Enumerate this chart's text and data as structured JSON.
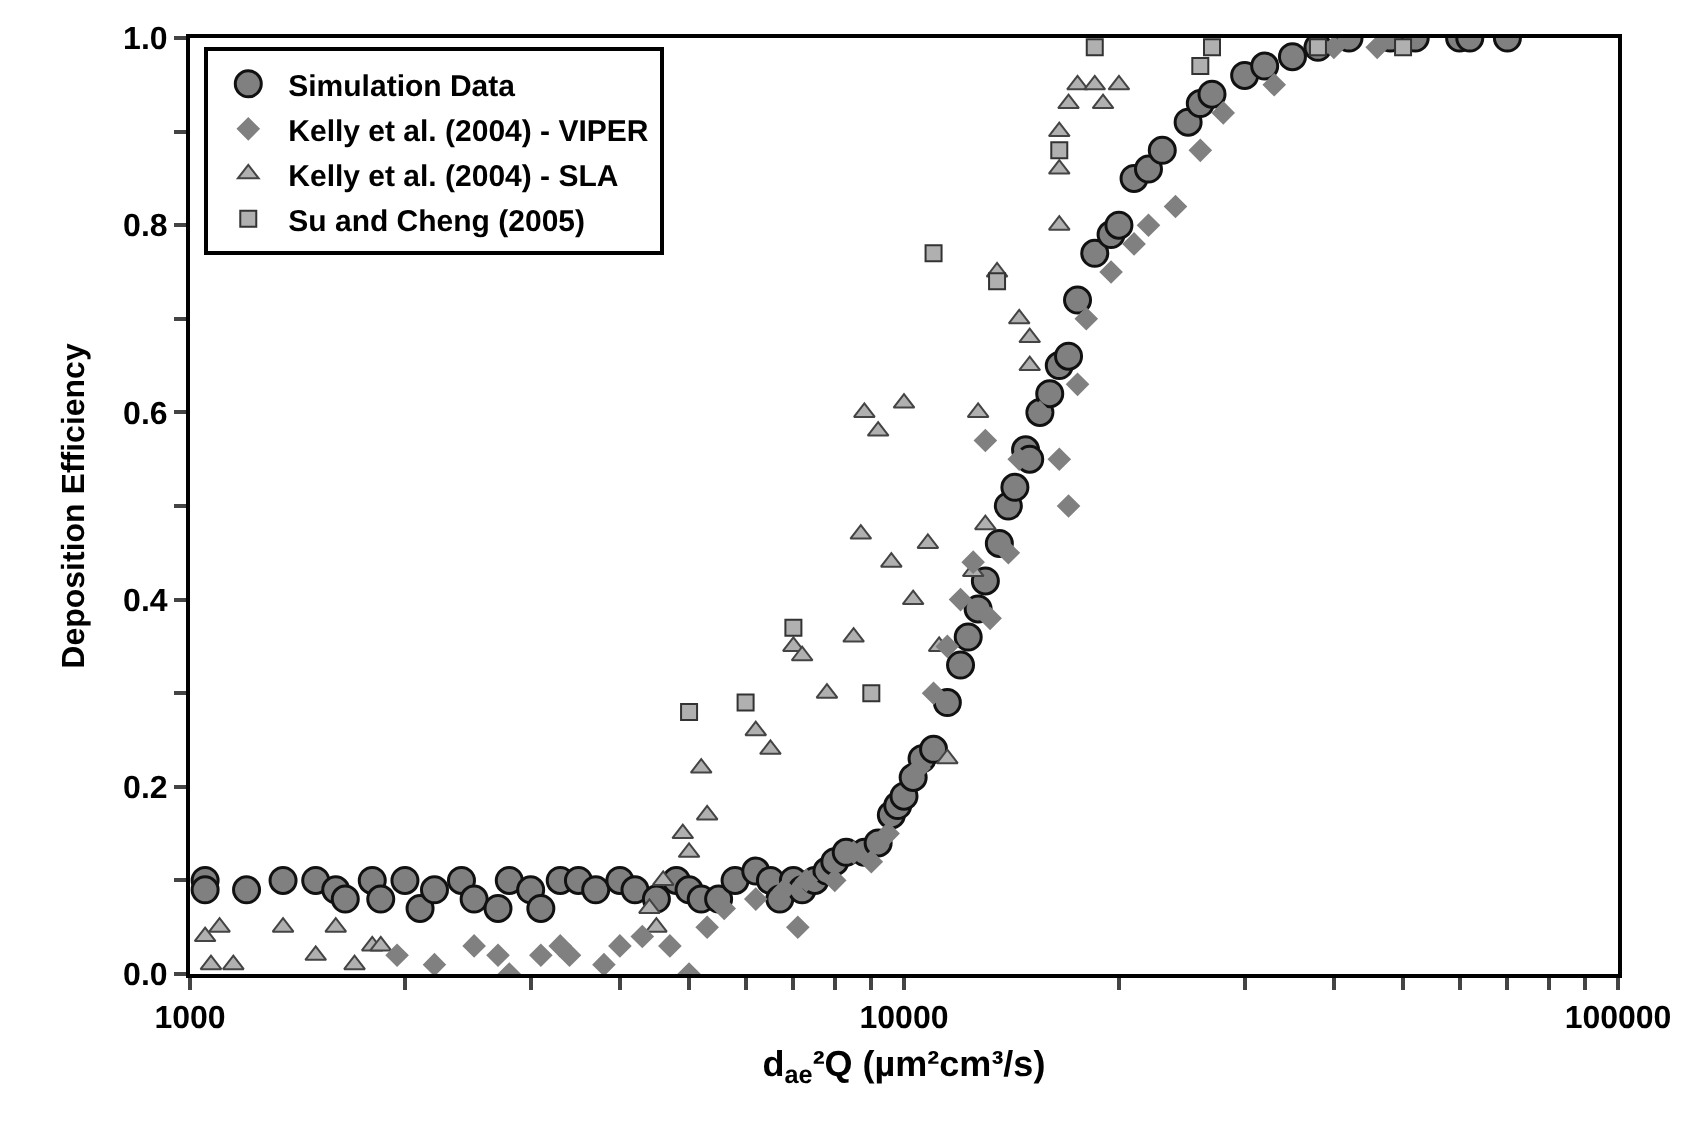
{
  "chart_data": {
    "type": "scatter",
    "xlabel": "d$_{ae}$²Q (µm²cm³/s)",
    "ylabel": "Deposition Efficiency",
    "log": "x",
    "legend": "top left",
    "xlim": [
      1000,
      100000
    ],
    "ylim": [
      0,
      1
    ],
    "xticks": [
      1000,
      {
        "value": 2000,
        "label": null
      },
      {
        "value": 3000,
        "label": null
      },
      {
        "value": 4000,
        "label": null
      },
      {
        "value": 5000,
        "label": null
      },
      {
        "value": 6000,
        "label": null
      },
      {
        "value": 7000,
        "label": null
      },
      {
        "value": 8000,
        "label": null
      },
      {
        "value": 9000,
        "label": null
      },
      10000,
      {
        "value": 20000,
        "label": null
      },
      {
        "value": 30000,
        "label": null
      },
      {
        "value": 40000,
        "label": null
      },
      {
        "value": 50000,
        "label": null
      },
      {
        "value": 60000,
        "label": null
      },
      {
        "value": 70000,
        "label": null
      },
      {
        "value": 80000,
        "label": null
      },
      {
        "value": 90000,
        "label": null
      },
      100000
    ],
    "yticks": [
      {
        "value": 0,
        "label": "0.0"
      },
      {
        "value": 0.1,
        "label": null
      },
      {
        "value": 0.2,
        "label": "0.2"
      },
      {
        "value": 0.3,
        "label": null
      },
      {
        "value": 0.4,
        "label": "0.4"
      },
      {
        "value": 0.5,
        "label": null
      },
      {
        "value": 0.6,
        "label": "0.6"
      },
      {
        "value": 0.7,
        "label": null
      },
      {
        "value": 0.8,
        "label": "0.8"
      },
      {
        "value": 0.9,
        "label": null
      },
      {
        "value": 1,
        "label": "1.0"
      }
    ],
    "series": [
      {
        "name": "Simulation Data",
        "color": "#808080",
        "marker": "circle",
        "x": [
          1050,
          1050,
          1200,
          1350,
          1500,
          1600,
          1650,
          1800,
          1850,
          2000,
          2100,
          2200,
          2400,
          2500,
          2700,
          2800,
          3000,
          3100,
          3300,
          3500,
          3700,
          4000,
          4200,
          4500,
          4800,
          5000,
          5200,
          5500,
          5800,
          6200,
          6500,
          6700,
          7000,
          7200,
          7500,
          7800,
          8000,
          8300,
          8800,
          9200,
          9600,
          9800,
          10000,
          10300,
          10600,
          11000,
          11500,
          12000,
          12300,
          12700,
          13000,
          13600,
          14000,
          14300,
          14800,
          15000,
          15500,
          16000,
          16500,
          17000,
          17500,
          18500,
          19500,
          20000,
          21000,
          22000,
          23000,
          25000,
          26000,
          27000,
          30000,
          32000,
          35000,
          38000,
          42000,
          48000,
          52000,
          60000,
          62000,
          70000
        ],
        "values": [
          0.1,
          0.09,
          0.09,
          0.1,
          0.1,
          0.09,
          0.08,
          0.1,
          0.08,
          0.1,
          0.07,
          0.09,
          0.1,
          0.08,
          0.07,
          0.1,
          0.09,
          0.07,
          0.1,
          0.1,
          0.09,
          0.1,
          0.09,
          0.08,
          0.1,
          0.09,
          0.08,
          0.08,
          0.1,
          0.11,
          0.1,
          0.08,
          0.1,
          0.09,
          0.1,
          0.11,
          0.12,
          0.13,
          0.13,
          0.14,
          0.17,
          0.18,
          0.19,
          0.21,
          0.23,
          0.24,
          0.29,
          0.33,
          0.36,
          0.39,
          0.42,
          0.46,
          0.5,
          0.52,
          0.56,
          0.55,
          0.6,
          0.62,
          0.65,
          0.66,
          0.72,
          0.77,
          0.79,
          0.8,
          0.85,
          0.86,
          0.88,
          0.91,
          0.93,
          0.94,
          0.96,
          0.97,
          0.98,
          0.99,
          1.0,
          1.0,
          1.0,
          1.0,
          1.0,
          1.0
        ]
      },
      {
        "name": "Kelly et al. (2004) - VIPER",
        "color": "#808080",
        "marker": "diamond",
        "x": [
          1950,
          2200,
          2500,
          2700,
          2800,
          3100,
          3300,
          3400,
          3800,
          4000,
          4300,
          4700,
          5000,
          5300,
          5600,
          6200,
          6800,
          7100,
          7300,
          8000,
          8500,
          9000,
          9500,
          10500,
          11000,
          11500,
          12000,
          12500,
          13000,
          13200,
          14000,
          14500,
          15500,
          16500,
          17000,
          17500,
          18000,
          19500,
          21000,
          22000,
          24000,
          26000,
          28000,
          33000,
          40000,
          46000
        ],
        "values": [
          0.02,
          0.01,
          0.03,
          0.02,
          0.0,
          0.02,
          0.03,
          0.02,
          0.01,
          0.03,
          0.04,
          0.03,
          0.0,
          0.05,
          0.07,
          0.08,
          0.09,
          0.05,
          0.1,
          0.1,
          0.13,
          0.12,
          0.15,
          0.22,
          0.3,
          0.35,
          0.4,
          0.44,
          0.57,
          0.38,
          0.45,
          0.55,
          0.6,
          0.55,
          0.5,
          0.63,
          0.7,
          0.75,
          0.78,
          0.8,
          0.82,
          0.88,
          0.92,
          0.95,
          0.99,
          0.99
        ]
      },
      {
        "name": "Kelly et al. (2004) - SLA",
        "color": "#b0b0b0",
        "marker": "triangle",
        "x": [
          1050,
          1070,
          1100,
          1150,
          1350,
          1500,
          1600,
          1700,
          1800,
          1850,
          4400,
          4500,
          4600,
          4900,
          5000,
          5200,
          5300,
          6200,
          6500,
          7000,
          7200,
          7800,
          8500,
          8700,
          8800,
          9200,
          9600,
          10000,
          10300,
          10800,
          11200,
          11500,
          12500,
          12700,
          13000,
          13500,
          14500,
          15000,
          15000,
          16500,
          16500,
          16500,
          17000,
          17500,
          18500,
          19000,
          20000
        ],
        "values": [
          0.04,
          0.01,
          0.05,
          0.01,
          0.05,
          0.02,
          0.05,
          0.01,
          0.03,
          0.03,
          0.07,
          0.05,
          0.1,
          0.15,
          0.13,
          0.22,
          0.17,
          0.26,
          0.24,
          0.35,
          0.34,
          0.3,
          0.36,
          0.47,
          0.6,
          0.58,
          0.44,
          0.61,
          0.4,
          0.46,
          0.35,
          0.23,
          0.43,
          0.6,
          0.48,
          0.75,
          0.7,
          0.65,
          0.68,
          0.8,
          0.86,
          0.9,
          0.93,
          0.95,
          0.95,
          0.93,
          0.95
        ]
      },
      {
        "name": "Su and Cheng (2005)",
        "color": "#b0b0b0",
        "marker": "square",
        "x": [
          5000,
          6000,
          7000,
          9000,
          11000,
          13500,
          16500,
          18500,
          26000,
          27000,
          38000,
          50000
        ],
        "values": [
          0.28,
          0.29,
          0.37,
          0.3,
          0.77,
          0.74,
          0.88,
          0.99,
          0.97,
          0.99,
          0.99,
          0.99
        ]
      }
    ]
  }
}
